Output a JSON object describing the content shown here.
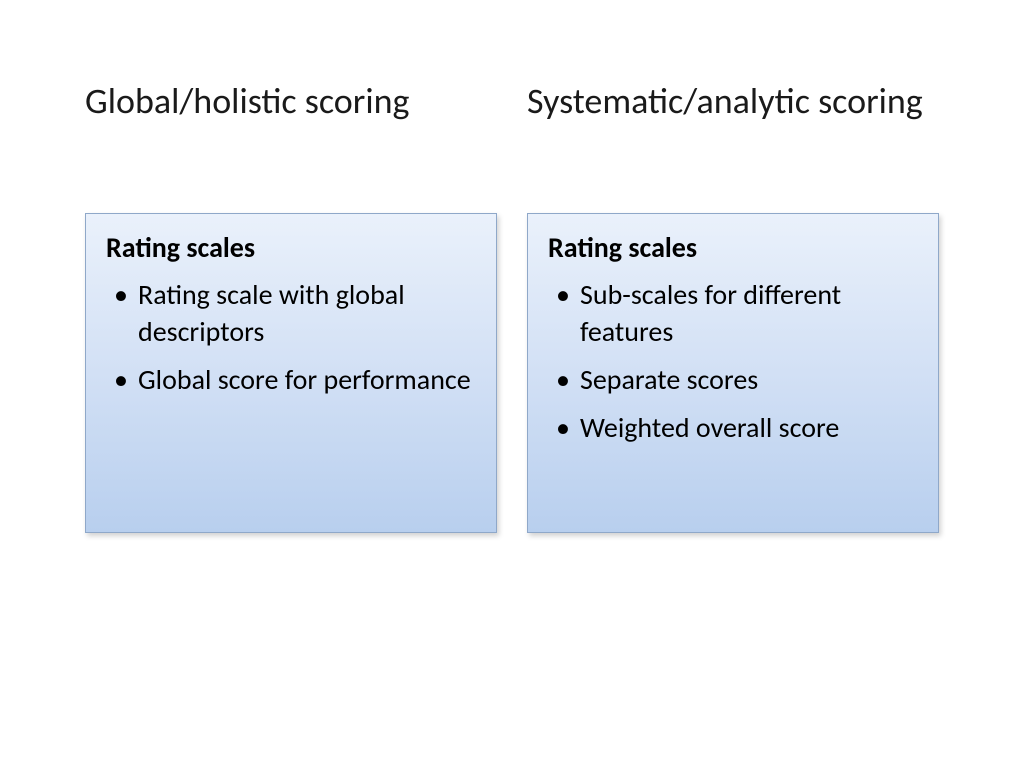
{
  "slide": {
    "background_color": "#ffffff",
    "text_color": "#000000",
    "heading_fontsize": 36,
    "body_fontsize": 28,
    "card_gradient_top": "#eaf1fb",
    "card_gradient_mid": "#d2e0f5",
    "card_gradient_bottom": "#b8cfee",
    "card_border_color": "#8fa8c9"
  },
  "left": {
    "heading": "Global/holistic scoring",
    "card_title": "Rating scales",
    "bullets": [
      "Rating scale with global descriptors",
      "Global score for performance"
    ]
  },
  "right": {
    "heading": "Systematic/analytic scoring",
    "card_title": "Rating scales",
    "bullets": [
      "Sub-scales for different features",
      "Separate scores",
      "Weighted overall score"
    ]
  }
}
